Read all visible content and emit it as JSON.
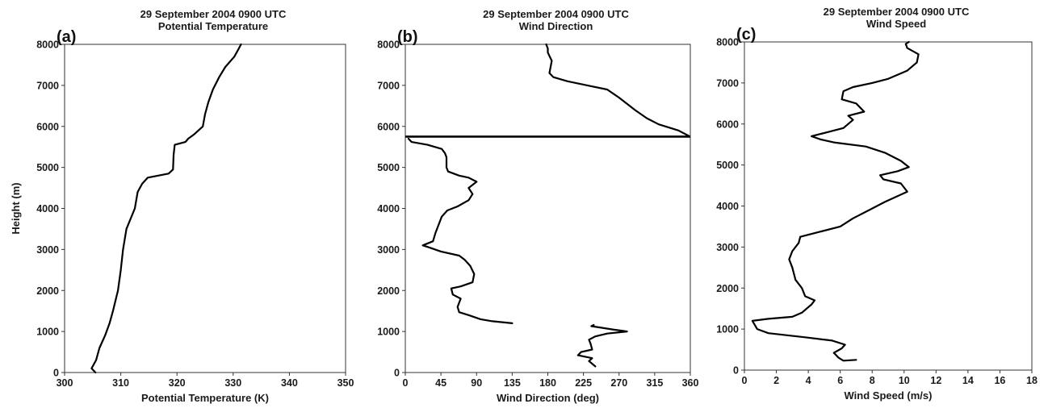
{
  "chart_data": [
    {
      "type": "line",
      "panel_label": "(a)",
      "title_line1": "29 September 2004 0900 UTC",
      "title_line2": "Potential Temperature",
      "xlabel": "Potential Temperature (K)",
      "ylabel": "Height (m)",
      "xlim": [
        300,
        350
      ],
      "ylim": [
        0,
        8000
      ],
      "xticks": [
        300,
        310,
        320,
        330,
        340,
        350
      ],
      "yticks": [
        0,
        1000,
        2000,
        3000,
        4000,
        5000,
        6000,
        7000,
        8000
      ],
      "series": [
        {
          "segments": [
            [
              [
                305.5,
                0
              ],
              [
                304.8,
                100
              ],
              [
                305.6,
                300
              ],
              [
                306.2,
                600
              ],
              [
                307.2,
                900
              ],
              [
                308.0,
                1200
              ],
              [
                308.6,
                1500
              ],
              [
                309.5,
                2000
              ],
              [
                310.0,
                2500
              ],
              [
                310.4,
                3000
              ],
              [
                311.0,
                3500
              ],
              [
                312.5,
                4000
              ],
              [
                313.0,
                4400
              ],
              [
                313.8,
                4600
              ],
              [
                314.8,
                4750
              ],
              [
                318.5,
                4850
              ],
              [
                319.3,
                4950
              ],
              [
                319.4,
                5300
              ],
              [
                319.6,
                5550
              ],
              [
                321.5,
                5620
              ],
              [
                322.0,
                5700
              ],
              [
                323.0,
                5800
              ],
              [
                324.6,
                6000
              ],
              [
                325.0,
                6300
              ],
              [
                325.6,
                6600
              ],
              [
                326.4,
                6900
              ],
              [
                327.5,
                7200
              ],
              [
                328.6,
                7450
              ],
              [
                330.2,
                7700
              ],
              [
                331.0,
                7900
              ],
              [
                331.4,
                8000
              ]
            ]
          ]
        }
      ]
    },
    {
      "type": "line",
      "panel_label": "(b)",
      "title_line1": "29 September 2004 0900 UTC",
      "title_line2": "Wind Direction",
      "xlabel": "Wind Direction (deg)",
      "ylabel": "",
      "xlim": [
        0,
        360
      ],
      "ylim": [
        0,
        8000
      ],
      "xticks": [
        0,
        45,
        90,
        135,
        180,
        225,
        270,
        315,
        360
      ],
      "yticks": [
        0,
        1000,
        2000,
        3000,
        4000,
        5000,
        6000,
        7000,
        8000
      ],
      "hline": 5750,
      "series": [
        {
          "segments": [
            [
              [
                240,
                150
              ],
              [
                232,
                280
              ],
              [
                236,
                350
              ],
              [
                218,
                420
              ],
              [
                222,
                500
              ],
              [
                236,
                560
              ],
              [
                234,
                700
              ],
              [
                232,
                800
              ],
              [
                240,
                880
              ],
              [
                255,
                950
              ],
              [
                280,
                1000
              ],
              [
                262,
                1050
              ],
              [
                245,
                1100
              ],
              [
                235,
                1130
              ],
              [
                238,
                1160
              ]
            ],
            [
              [
                135,
                1200
              ],
              [
                110,
                1250
              ],
              [
                95,
                1300
              ],
              [
                80,
                1400
              ],
              [
                68,
                1470
              ],
              [
                66,
                1600
              ],
              [
                70,
                1800
              ],
              [
                60,
                1900
              ],
              [
                58,
                2050
              ],
              [
                70,
                2100
              ],
              [
                85,
                2200
              ],
              [
                87,
                2400
              ],
              [
                82,
                2600
              ],
              [
                75,
                2750
              ],
              [
                68,
                2850
              ],
              [
                45,
                2950
              ],
              [
                30,
                3050
              ],
              [
                22,
                3100
              ],
              [
                35,
                3200
              ],
              [
                38,
                3400
              ],
              [
                42,
                3600
              ],
              [
                46,
                3800
              ],
              [
                53,
                3950
              ],
              [
                66,
                4050
              ],
              [
                80,
                4200
              ],
              [
                85,
                4350
              ],
              [
                80,
                4500
              ],
              [
                90,
                4650
              ],
              [
                80,
                4750
              ],
              [
                68,
                4800
              ],
              [
                54,
                4900
              ],
              [
                52,
                5000
              ],
              [
                52,
                5250
              ],
              [
                50,
                5350
              ],
              [
                46,
                5450
              ],
              [
                28,
                5550
              ],
              [
                8,
                5620
              ],
              [
                4,
                5700
              ]
            ],
            [
              [
                358,
                5770
              ],
              [
                345,
                5900
              ],
              [
                320,
                6050
              ],
              [
                305,
                6200
              ],
              [
                290,
                6400
              ],
              [
                270,
                6700
              ],
              [
                255,
                6900
              ],
              [
                230,
                7000
              ],
              [
                205,
                7100
              ],
              [
                187,
                7200
              ],
              [
                182,
                7300
              ],
              [
                185,
                7600
              ],
              [
                180,
                7800
              ],
              [
                180,
                7900
              ],
              [
                178,
                8000
              ]
            ]
          ]
        }
      ]
    },
    {
      "type": "line",
      "panel_label": "(c)",
      "title_line1": "29 September 2004 0900 UTC",
      "title_line2": "Wind Speed",
      "xlabel": "Wind Speed (m/s)",
      "ylabel": "",
      "xlim": [
        0,
        18
      ],
      "ylim": [
        0,
        8000
      ],
      "xticks": [
        0,
        2,
        4,
        6,
        8,
        10,
        12,
        14,
        16,
        18
      ],
      "yticks": [
        0,
        1000,
        2000,
        3000,
        4000,
        5000,
        6000,
        7000,
        8000
      ],
      "series": [
        {
          "segments": [
            [
              [
                7.0,
                250
              ],
              [
                6.2,
                230
              ],
              [
                5.9,
                300
              ],
              [
                5.6,
                420
              ],
              [
                6.1,
                530
              ],
              [
                6.3,
                620
              ],
              [
                5.5,
                720
              ],
              [
                3.8,
                800
              ],
              [
                1.5,
                900
              ],
              [
                0.8,
                1000
              ],
              [
                0.5,
                1200
              ],
              [
                1.5,
                1250
              ],
              [
                3.0,
                1300
              ],
              [
                3.6,
                1400
              ],
              [
                3.9,
                1500
              ],
              [
                4.2,
                1600
              ],
              [
                4.4,
                1700
              ],
              [
                3.8,
                1800
              ],
              [
                3.6,
                2000
              ],
              [
                3.2,
                2200
              ],
              [
                3.0,
                2500
              ],
              [
                2.8,
                2700
              ],
              [
                3.0,
                2900
              ],
              [
                3.4,
                3100
              ],
              [
                3.5,
                3250
              ],
              [
                4.5,
                3350
              ],
              [
                6.0,
                3500
              ],
              [
                6.8,
                3700
              ],
              [
                7.8,
                3900
              ],
              [
                8.8,
                4100
              ],
              [
                10.2,
                4350
              ],
              [
                9.8,
                4550
              ],
              [
                8.7,
                4650
              ],
              [
                8.5,
                4750
              ],
              [
                9.6,
                4850
              ],
              [
                10.3,
                4950
              ],
              [
                9.8,
                5100
              ],
              [
                8.8,
                5300
              ],
              [
                7.6,
                5450
              ],
              [
                5.6,
                5550
              ],
              [
                4.8,
                5620
              ],
              [
                4.2,
                5700
              ],
              [
                5.2,
                5800
              ],
              [
                6.2,
                5900
              ],
              [
                6.8,
                6100
              ],
              [
                6.5,
                6200
              ],
              [
                7.5,
                6300
              ],
              [
                7.0,
                6500
              ],
              [
                6.1,
                6600
              ],
              [
                6.2,
                6800
              ],
              [
                6.8,
                6900
              ],
              [
                8.0,
                7000
              ],
              [
                9.0,
                7100
              ],
              [
                10.2,
                7300
              ],
              [
                10.8,
                7500
              ],
              [
                10.9,
                7700
              ],
              [
                10.2,
                7850
              ],
              [
                10.1,
                7950
              ],
              [
                10.3,
                8000
              ]
            ]
          ]
        }
      ]
    }
  ]
}
